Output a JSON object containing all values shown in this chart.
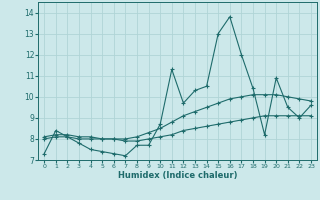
{
  "xlabel": "Humidex (Indice chaleur)",
  "xlim": [
    -0.5,
    23.5
  ],
  "ylim": [
    7,
    14.5
  ],
  "yticks": [
    7,
    8,
    9,
    10,
    11,
    12,
    13,
    14
  ],
  "xticks": [
    0,
    1,
    2,
    3,
    4,
    5,
    6,
    7,
    8,
    9,
    10,
    11,
    12,
    13,
    14,
    15,
    16,
    17,
    18,
    19,
    20,
    21,
    22,
    23
  ],
  "bg_color": "#cce8ea",
  "grid_color": "#b0d4d6",
  "line_color": "#1e6b6b",
  "line1_y": [
    7.3,
    8.4,
    8.1,
    7.8,
    7.5,
    7.4,
    7.3,
    7.2,
    7.7,
    7.7,
    8.7,
    11.3,
    9.7,
    10.3,
    10.5,
    13.0,
    13.8,
    12.0,
    10.4,
    8.2,
    10.9,
    9.5,
    9.0,
    9.6
  ],
  "line2_y": [
    8.0,
    8.1,
    8.1,
    8.0,
    8.0,
    8.0,
    8.0,
    8.0,
    8.1,
    8.3,
    8.5,
    8.8,
    9.1,
    9.3,
    9.5,
    9.7,
    9.9,
    10.0,
    10.1,
    10.1,
    10.1,
    10.0,
    9.9,
    9.8
  ],
  "line3_y": [
    8.1,
    8.2,
    8.2,
    8.1,
    8.1,
    8.0,
    8.0,
    7.9,
    7.9,
    8.0,
    8.1,
    8.2,
    8.4,
    8.5,
    8.6,
    8.7,
    8.8,
    8.9,
    9.0,
    9.1,
    9.1,
    9.1,
    9.1,
    9.1
  ]
}
